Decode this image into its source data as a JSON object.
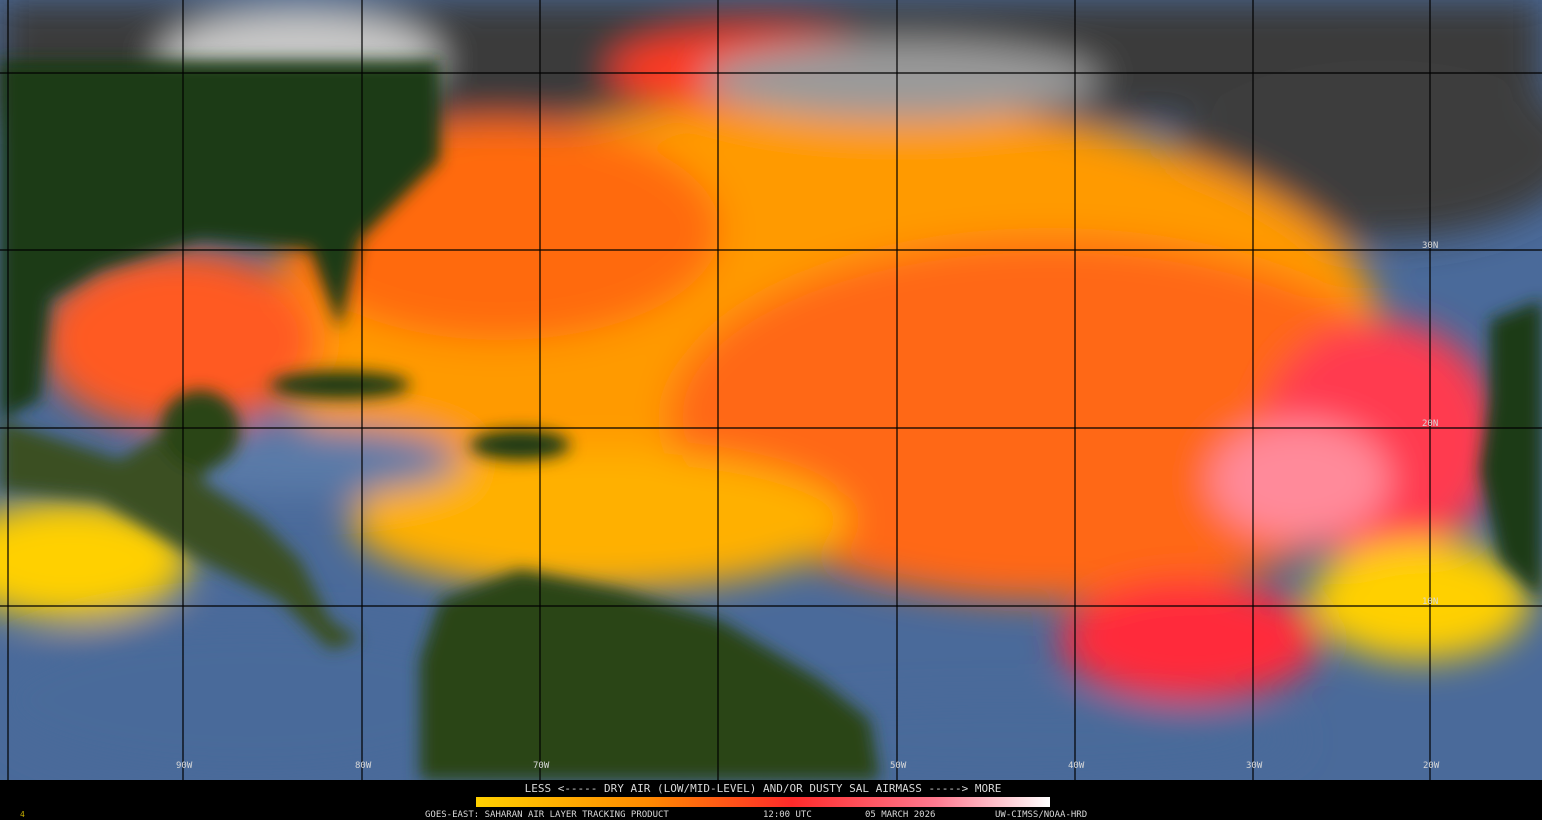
{
  "map": {
    "longitude_labels": [
      "90W",
      "80W",
      "70W",
      "50W",
      "40W",
      "30W",
      "20W"
    ],
    "latitude_labels": [
      "30N",
      "20N",
      "10N"
    ],
    "legend": {
      "caption": "LESS <----- DRY AIR (LOW/MID-LEVEL) AND/OR DUSTY SAL AIRMASS -----> MORE"
    },
    "footer": {
      "product": "GOES-EAST: SAHARAN AIR LAYER TRACKING PRODUCT",
      "time": "12:00 UTC",
      "date": "05 MARCH 2026",
      "credit": "UW-CIMSS/NOAA-HRD",
      "corner": "4"
    }
  }
}
